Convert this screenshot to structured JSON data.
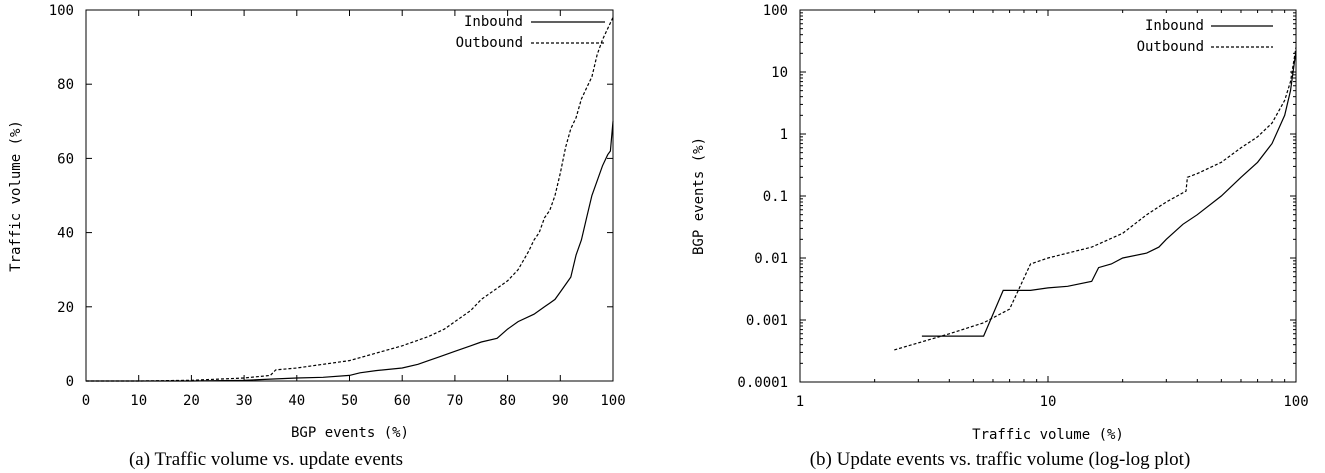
{
  "chart_data": [
    {
      "type": "line",
      "caption": "(a) Traffic volume vs. update events",
      "xlabel": "BGP events (%)",
      "ylabel": "Traffic volume (%)",
      "xlim": [
        0,
        100
      ],
      "ylim": [
        0,
        100
      ],
      "xscale": "linear",
      "yscale": "linear",
      "xticks": [
        "0",
        "10",
        "20",
        "30",
        "40",
        "50",
        "60",
        "70",
        "80",
        "90",
        "100"
      ],
      "yticks": [
        "0",
        "20",
        "40",
        "60",
        "80",
        "100"
      ],
      "grid": false,
      "legend_position": "top-right",
      "series": [
        {
          "name": "Inbound",
          "style": "solid",
          "x": [
            0,
            10,
            20,
            30,
            35,
            40,
            45,
            50,
            52,
            55,
            60,
            63,
            65,
            67,
            70,
            73,
            75,
            78,
            80,
            82,
            85,
            87,
            88,
            89,
            90,
            91,
            92,
            93,
            94,
            95,
            96,
            97,
            98,
            99,
            99.5,
            100
          ],
          "y": [
            0,
            0,
            0,
            0.2,
            0.5,
            0.8,
            1.0,
            1.5,
            2.2,
            2.8,
            3.5,
            4.5,
            5.5,
            6.5,
            8,
            9.5,
            10.5,
            11.5,
            14,
            16,
            18,
            20,
            21,
            22,
            24,
            26,
            28,
            34,
            38,
            44,
            50,
            54,
            58,
            61,
            62,
            70
          ]
        },
        {
          "name": "Outbound",
          "style": "dashed",
          "x": [
            0,
            10,
            20,
            30,
            35,
            36,
            40,
            45,
            50,
            55,
            60,
            65,
            68,
            70,
            73,
            75,
            78,
            80,
            82,
            84,
            85,
            86,
            87,
            88,
            89,
            90,
            91,
            92,
            93,
            94,
            95,
            96,
            97,
            98,
            99,
            100
          ],
          "y": [
            0,
            0,
            0.2,
            0.8,
            1.5,
            3,
            3.5,
            4.5,
            5.5,
            7.5,
            9.5,
            12,
            14,
            16,
            19,
            22,
            25,
            27,
            30,
            35,
            38,
            40,
            44,
            46,
            50,
            56,
            63,
            68,
            71,
            76,
            79,
            82,
            88,
            92,
            95,
            98
          ]
        }
      ]
    },
    {
      "type": "line",
      "caption": "(b) Update events vs. traffic volume (log-log plot)",
      "xlabel": "Traffic volume (%)",
      "ylabel": "BGP events (%)",
      "xlim": [
        1,
        100
      ],
      "ylim": [
        0.0001,
        100
      ],
      "xscale": "log",
      "yscale": "log",
      "xticks": [
        "1",
        "10",
        "100"
      ],
      "yticks": [
        "0.0001",
        "0.001",
        "0.01",
        "0.1",
        "1",
        "10",
        "100"
      ],
      "grid": false,
      "legend_position": "top-right",
      "series": [
        {
          "name": "Inbound",
          "style": "solid",
          "x": [
            3.1,
            5.5,
            6.6,
            8.5,
            10,
            12,
            15,
            16,
            18,
            20,
            25,
            28,
            30,
            35,
            40,
            50,
            60,
            70,
            80,
            90,
            95,
            100
          ],
          "y": [
            0.00055,
            0.00055,
            0.003,
            0.003,
            0.0033,
            0.0035,
            0.0042,
            0.007,
            0.008,
            0.01,
            0.012,
            0.015,
            0.02,
            0.035,
            0.05,
            0.1,
            0.2,
            0.35,
            0.7,
            2,
            5,
            22
          ]
        },
        {
          "name": "Outbound",
          "style": "dashed",
          "x": [
            2.4,
            4,
            5.5,
            7,
            8.5,
            10,
            15,
            20,
            25,
            30,
            36,
            36.5,
            40,
            50,
            60,
            70,
            80,
            90,
            95,
            100
          ],
          "y": [
            0.00033,
            0.0006,
            0.0009,
            0.0015,
            0.008,
            0.01,
            0.015,
            0.025,
            0.05,
            0.08,
            0.12,
            0.2,
            0.23,
            0.35,
            0.6,
            0.9,
            1.5,
            3.5,
            7,
            25
          ]
        }
      ]
    }
  ]
}
